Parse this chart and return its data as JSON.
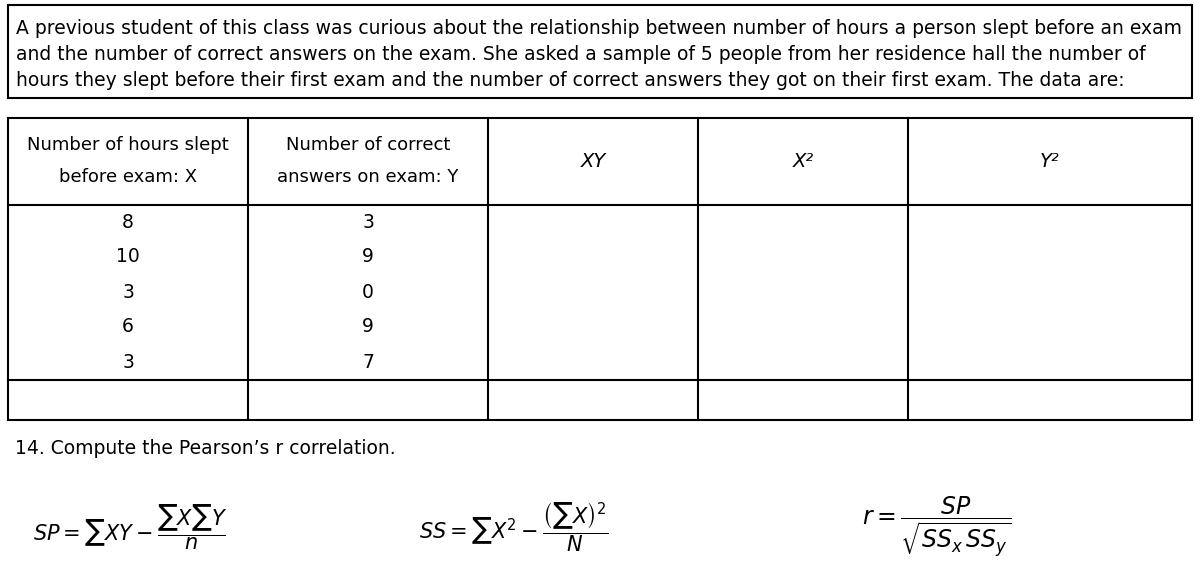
{
  "intro_text": [
    "A previous student of this class was curious about the relationship between number of hours a person slept before an exam",
    "and the number of correct answers on the exam. She asked a sample of 5 people from her residence hall the number of",
    "hours they slept before their first exam and the number of correct answers they got on their first exam. The data are:"
  ],
  "col_headers_line1": [
    "Number of hours slept",
    "Number of correct",
    "XY",
    "X²",
    "Y²"
  ],
  "col_headers_line2": [
    "before exam: X",
    "answers on exam: Y",
    "",
    "",
    ""
  ],
  "data_rows": [
    [
      "8",
      "3",
      "",
      "",
      ""
    ],
    [
      "10",
      "9",
      "",
      "",
      ""
    ],
    [
      "3",
      "0",
      "",
      "",
      ""
    ],
    [
      "6",
      "9",
      "",
      "",
      ""
    ],
    [
      "3",
      "7",
      "",
      "",
      ""
    ]
  ],
  "label_14": "14. Compute the Pearson’s r correlation.",
  "bg_color": "#ffffff",
  "border_color": "#000000",
  "text_color": "#000000",
  "font_size_intro": 13.5,
  "font_size_table_header": 13.0,
  "font_size_table_data": 13.5,
  "font_size_label": 13.5,
  "font_size_formula": 15
}
